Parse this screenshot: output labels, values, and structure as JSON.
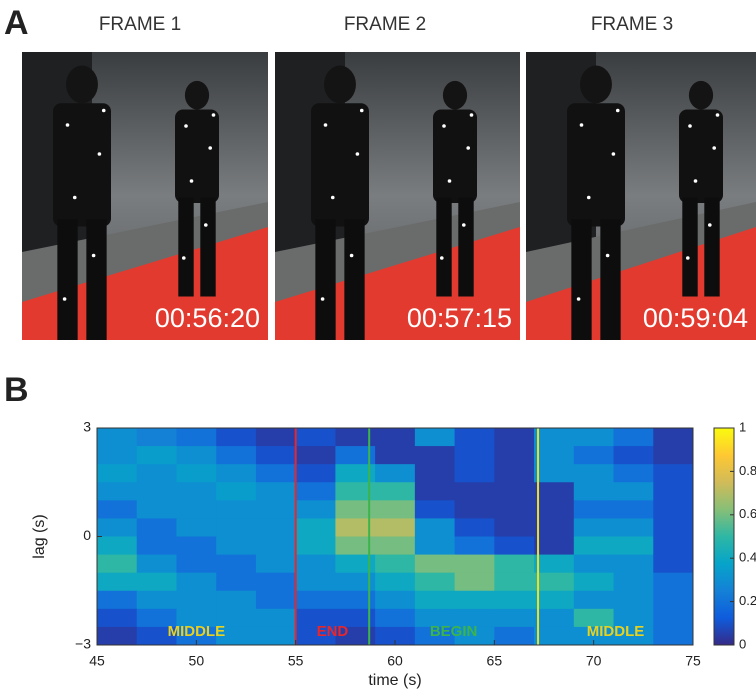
{
  "panel_a": {
    "label": "A",
    "frames": [
      {
        "title": "FRAME 1",
        "time": "00:56:20"
      },
      {
        "title": "FRAME 2",
        "time": "00:57:15"
      },
      {
        "title": "FRAME 3",
        "time": "00:59:04"
      }
    ]
  },
  "panel_b_label": "B",
  "chart_data": {
    "type": "heatmap",
    "xlabel": "time (s)",
    "ylabel": "lag (s)",
    "xlim": [
      45,
      75
    ],
    "xticks": [
      45,
      50,
      55,
      60,
      65,
      70,
      75
    ],
    "ylim": [
      -3,
      3
    ],
    "yticks": [
      {
        "value": -3,
        "label": "−3"
      },
      0,
      3
    ],
    "clim": [
      0,
      1
    ],
    "cticks": [
      0,
      0.2,
      0.4,
      0.6,
      0.8,
      1
    ],
    "colormap": [
      "#352a87",
      "#0f5cdd",
      "#1481d6",
      "#06a4ca",
      "#2eb7a4",
      "#87bf77",
      "#d1bb59",
      "#fec832",
      "#f9fb0e"
    ],
    "x": [
      46,
      48,
      50,
      52,
      54,
      56,
      58,
      60,
      62,
      64,
      66,
      68,
      70,
      72,
      74
    ],
    "y": [
      2.75,
      2.25,
      1.75,
      1.25,
      0.75,
      0.25,
      -0.25,
      -0.75,
      -1.25,
      -1.75,
      -2.25,
      -2.75
    ],
    "z": [
      [
        0.3,
        0.25,
        0.2,
        0.1,
        0.05,
        0.1,
        0.05,
        0.05,
        0.3,
        0.1,
        0.05,
        0.3,
        0.3,
        0.2,
        0.05
      ],
      [
        0.3,
        0.35,
        0.3,
        0.2,
        0.1,
        0.05,
        0.2,
        0.05,
        0.05,
        0.1,
        0.05,
        0.3,
        0.2,
        0.1,
        0.05
      ],
      [
        0.35,
        0.3,
        0.35,
        0.3,
        0.2,
        0.1,
        0.4,
        0.3,
        0.05,
        0.1,
        0.05,
        0.3,
        0.3,
        0.2,
        0.1
      ],
      [
        0.3,
        0.3,
        0.3,
        0.35,
        0.3,
        0.2,
        0.5,
        0.5,
        0.05,
        0.05,
        0.05,
        0.05,
        0.3,
        0.3,
        0.1
      ],
      [
        0.2,
        0.3,
        0.3,
        0.3,
        0.3,
        0.3,
        0.6,
        0.6,
        0.1,
        0.05,
        0.05,
        0.05,
        0.2,
        0.2,
        0.1
      ],
      [
        0.3,
        0.2,
        0.3,
        0.3,
        0.3,
        0.4,
        0.7,
        0.7,
        0.3,
        0.1,
        0.05,
        0.05,
        0.3,
        0.3,
        0.1
      ],
      [
        0.4,
        0.2,
        0.2,
        0.3,
        0.3,
        0.4,
        0.6,
        0.6,
        0.3,
        0.2,
        0.1,
        0.05,
        0.4,
        0.4,
        0.1
      ],
      [
        0.5,
        0.3,
        0.2,
        0.2,
        0.3,
        0.3,
        0.4,
        0.5,
        0.6,
        0.6,
        0.5,
        0.4,
        0.3,
        0.3,
        0.1
      ],
      [
        0.4,
        0.4,
        0.3,
        0.2,
        0.2,
        0.3,
        0.3,
        0.4,
        0.5,
        0.6,
        0.5,
        0.5,
        0.4,
        0.3,
        0.2
      ],
      [
        0.2,
        0.3,
        0.3,
        0.3,
        0.2,
        0.2,
        0.2,
        0.3,
        0.4,
        0.4,
        0.4,
        0.4,
        0.3,
        0.3,
        0.2
      ],
      [
        0.1,
        0.2,
        0.3,
        0.3,
        0.3,
        0.1,
        0.1,
        0.2,
        0.3,
        0.3,
        0.3,
        0.3,
        0.5,
        0.3,
        0.2
      ],
      [
        0.05,
        0.1,
        0.2,
        0.3,
        0.3,
        0.1,
        0.05,
        0.1,
        0.2,
        0.3,
        0.2,
        0.3,
        0.3,
        0.3,
        0.2
      ]
    ],
    "events": [
      {
        "x": 55,
        "color": "#e8262c"
      },
      {
        "x": 58.7,
        "color": "#3cb44b"
      },
      {
        "x": 67.2,
        "color": "#f2e01e"
      }
    ],
    "segments": [
      {
        "label": "MIDDLE",
        "color": "#e8d21e"
      },
      {
        "label": "END",
        "color": "#e8262c"
      },
      {
        "label": "BEGIN",
        "color": "#3cb44b"
      },
      {
        "label": "MIDDLE",
        "color": "#e8d21e"
      }
    ]
  }
}
